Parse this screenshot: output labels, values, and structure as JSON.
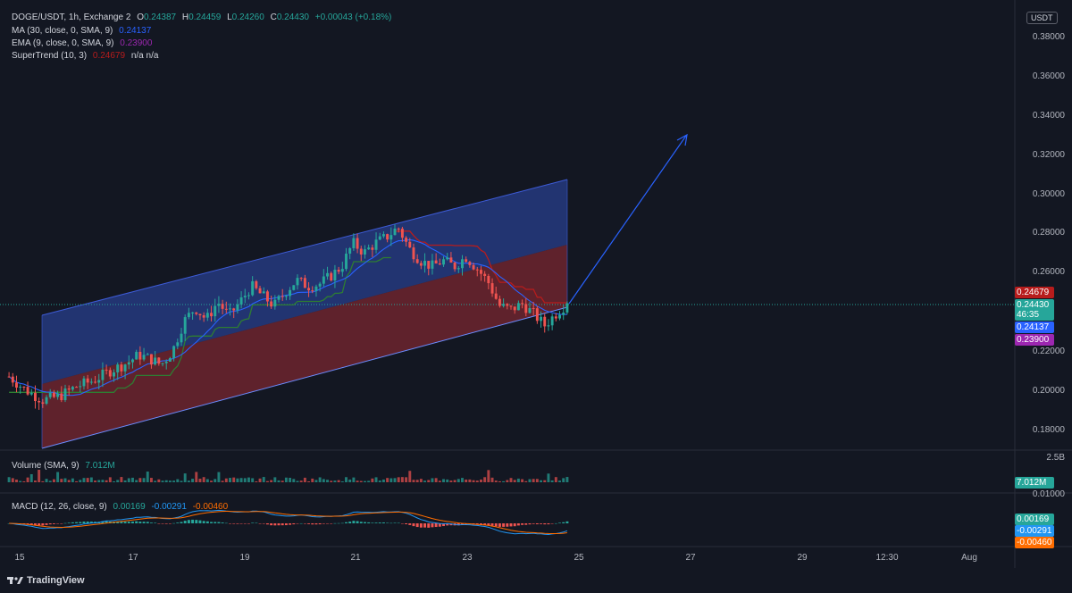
{
  "header": {
    "symbol": "DOGE/USDT, 1h, Exchange 2",
    "ohlc": [
      {
        "k": "O",
        "v": "0.24387"
      },
      {
        "k": "H",
        "v": "0.24459"
      },
      {
        "k": "L",
        "v": "0.24260"
      },
      {
        "k": "C",
        "v": "0.24430"
      }
    ],
    "change": "+0.00043 (+0.18%)"
  },
  "indicators": {
    "ma_label": "MA (30, close, 0, SMA, 9)",
    "ma_value": "0.24137",
    "ema_label": "EMA (9, close, 0, SMA, 9)",
    "ema_value": "0.23900",
    "supertrend_label": "SuperTrend (10, 3)",
    "supertrend_value": "0.24679",
    "supertrend_na": "n/a  n/a",
    "volume_label": "Volume (SMA, 9)",
    "volume_value": "7.012M",
    "macd_label": "MACD (12, 26, close, 9)",
    "macd_values": [
      "0.00169",
      "-0.00291",
      "-0.00460"
    ]
  },
  "currency": "USDT",
  "price_axis": [
    "0.38000",
    "0.36000",
    "0.34000",
    "0.32000",
    "0.30000",
    "0.28000",
    "0.26000",
    "0.24000",
    "0.22000",
    "0.20000",
    "0.18000"
  ],
  "tags": {
    "supertrend": "0.24679",
    "last_price": "0.24430",
    "countdown": "46:35",
    "ma": "0.24137",
    "ema": "0.23900",
    "volume_axis": "2.5B",
    "volume_tag": "7.012M",
    "macd_axis": "0.01000",
    "macd_line": "0.00169",
    "macd_signal": "-0.00291",
    "macd_hist": "-0.00460"
  },
  "time_axis": [
    "15",
    "17",
    "19",
    "21",
    "23",
    "25",
    "27",
    "29",
    "12:30",
    "Aug"
  ],
  "branding": "TradingView",
  "colors": {
    "bg": "#131722",
    "up": "#26a69a",
    "down": "#ef5350",
    "ma": "#2962ff",
    "ema": "#9c27b0",
    "supertrend_down": "#b71c1c",
    "supertrend_up": "#2e7d32",
    "channel_upper": "#283f8c",
    "channel_lower": "#7a2730"
  },
  "chart_data": {
    "type": "candlestick",
    "symbol": "DOGE/USDT",
    "interval": "1h",
    "y_range": [
      0.17,
      0.39
    ],
    "x_ticks": [
      "15",
      "17",
      "19",
      "21",
      "23",
      "25",
      "27",
      "29",
      "12:30",
      "Aug"
    ],
    "close_path": [
      [
        0,
        0.207
      ],
      [
        3,
        0.2
      ],
      [
        6,
        0.195
      ],
      [
        9,
        0.197
      ],
      [
        12,
        0.202
      ],
      [
        15,
        0.205
      ],
      [
        18,
        0.21
      ],
      [
        21,
        0.214
      ],
      [
        23,
        0.218
      ],
      [
        25,
        0.216
      ],
      [
        27,
        0.213
      ],
      [
        29,
        0.22
      ],
      [
        31,
        0.235
      ],
      [
        33,
        0.242
      ],
      [
        35,
        0.236
      ],
      [
        37,
        0.245
      ],
      [
        39,
        0.238
      ],
      [
        41,
        0.245
      ],
      [
        43,
        0.253
      ],
      [
        45,
        0.248
      ],
      [
        47,
        0.243
      ],
      [
        49,
        0.25
      ],
      [
        51,
        0.256
      ],
      [
        53,
        0.253
      ],
      [
        55,
        0.254
      ],
      [
        57,
        0.258
      ],
      [
        59,
        0.263
      ],
      [
        61,
        0.275
      ],
      [
        63,
        0.27
      ],
      [
        65,
        0.275
      ],
      [
        67,
        0.278
      ],
      [
        69,
        0.283
      ],
      [
        71,
        0.272
      ],
      [
        73,
        0.266
      ],
      [
        75,
        0.263
      ],
      [
        77,
        0.266
      ],
      [
        79,
        0.263
      ],
      [
        81,
        0.268
      ],
      [
        83,
        0.262
      ],
      [
        85,
        0.255
      ],
      [
        87,
        0.243
      ],
      [
        89,
        0.241
      ],
      [
        91,
        0.244
      ],
      [
        93,
        0.239
      ],
      [
        95,
        0.233
      ],
      [
        97,
        0.239
      ],
      [
        99,
        0.2443
      ]
    ],
    "channel": {
      "upper_line": [
        [
          0.235,
          15.3
        ],
        [
          0.308,
          24.8
        ]
      ],
      "middle_line": [
        [
          0.204,
          15.3
        ],
        [
          0.275,
          24.8
        ]
      ],
      "lower_line": [
        [
          0.169,
          15.3
        ],
        [
          0.243,
          24.8
        ]
      ]
    },
    "projection_arrow": {
      "from": 0.2445,
      "to": 0.331
    },
    "last_price": 0.2443
  }
}
